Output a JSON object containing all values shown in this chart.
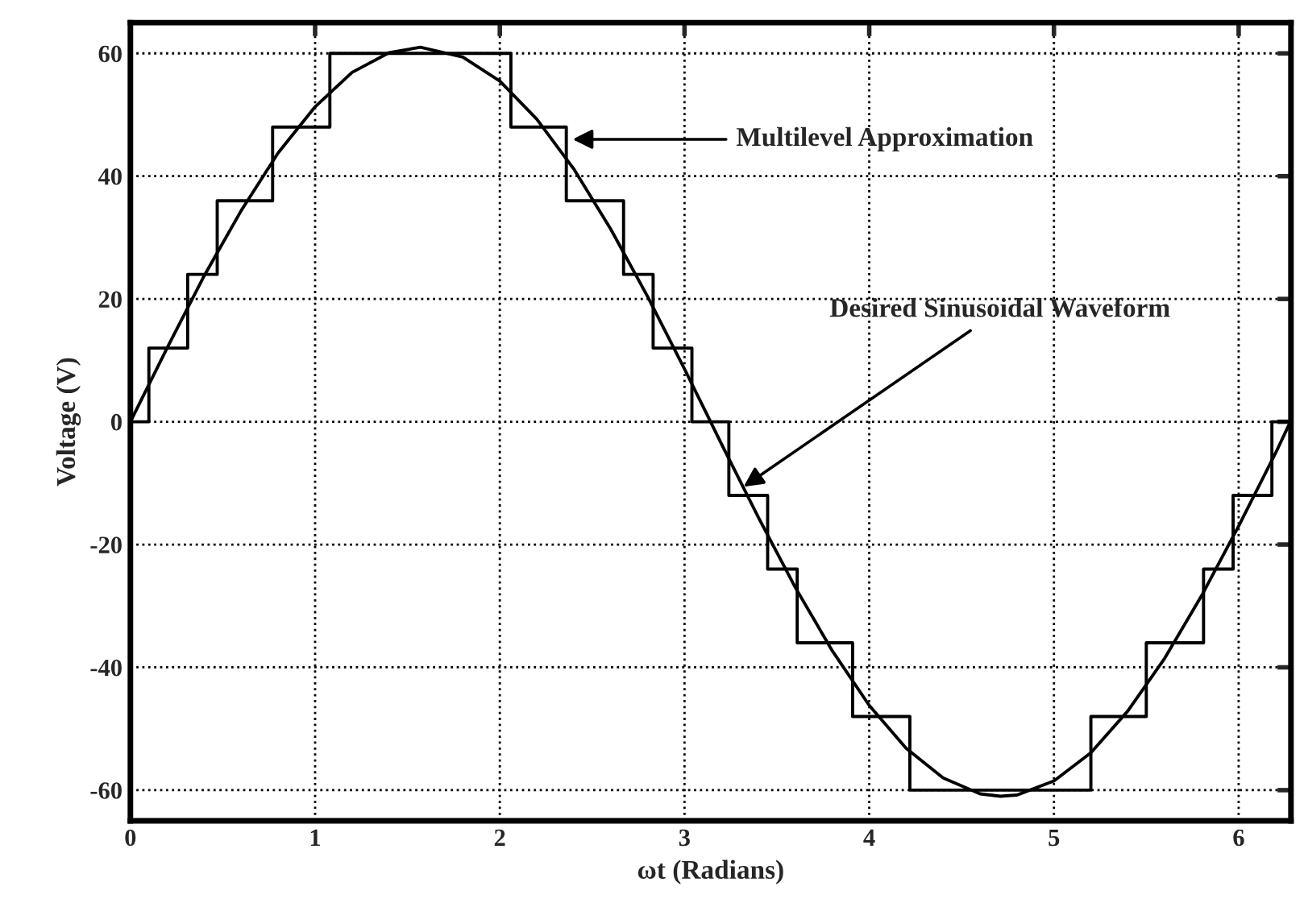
{
  "chart_data": {
    "type": "line",
    "xlabel": "ωt (Radians)",
    "ylabel": "Voltage (V)",
    "xlim": [
      0,
      6.2832
    ],
    "ylim": [
      -65,
      65
    ],
    "xticks": [
      0,
      1,
      2,
      3,
      4,
      5,
      6
    ],
    "yticks": [
      -60,
      -40,
      -20,
      0,
      20,
      40,
      60
    ],
    "grid": true,
    "legend": false,
    "series": [
      {
        "type": "step",
        "color": "#000000",
        "x": [
          0,
          0.1,
          0.31,
          0.47,
          0.77,
          1.08,
          2.06,
          2.36,
          2.67,
          2.83,
          3.04,
          3.24,
          3.45,
          3.61,
          3.91,
          4.22,
          5.2,
          5.5,
          5.81,
          5.97,
          6.18,
          6.28
        ],
        "values": [
          0,
          12,
          24,
          36,
          48,
          60,
          48,
          36,
          24,
          12,
          0,
          -12,
          -24,
          -36,
          -48,
          -60,
          -48,
          -36,
          -24,
          -12,
          0,
          0
        ]
      },
      {
        "color": "#000000",
        "x": [
          0,
          0.2,
          0.4,
          0.6,
          0.8,
          1.0,
          1.2,
          1.4,
          1.57,
          1.8,
          2.0,
          2.2,
          2.4,
          2.6,
          2.8,
          3.0,
          3.2,
          3.4,
          3.6,
          3.8,
          4.0,
          4.2,
          4.4,
          4.6,
          4.71,
          4.8,
          5.0,
          5.2,
          5.4,
          5.6,
          5.8,
          6.0,
          6.2,
          6.28
        ],
        "values": [
          0,
          12.1,
          23.8,
          34.4,
          43.8,
          51.3,
          56.9,
          60.1,
          61,
          59.4,
          55.5,
          49.3,
          41.2,
          31.4,
          20.4,
          8.6,
          -3.6,
          -15.6,
          -27.0,
          -37.3,
          -46.2,
          -53.2,
          -58.0,
          -60.6,
          -61,
          -60.8,
          -58.5,
          -53.9,
          -47.1,
          -38.5,
          -28.3,
          -17.0,
          -5.1,
          0
        ]
      }
    ],
    "annotations": [
      {
        "text": "Multilevel Approximation",
        "x": 2.37,
        "y": 46
      },
      {
        "text": "Desired Sinusoidal Waveform",
        "x": 3.3,
        "y": -11
      }
    ]
  }
}
